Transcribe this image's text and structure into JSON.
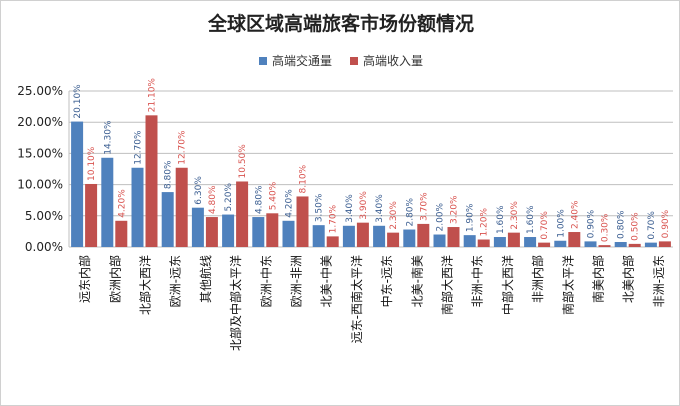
{
  "chart_data": {
    "type": "bar",
    "title": "全球区域高端旅客市场份额情况",
    "xlabel": "",
    "ylabel": "",
    "ylim": [
      0,
      25
    ],
    "yticks": [
      "0.00%",
      "5.00%",
      "10.00%",
      "15.00%",
      "20.00%",
      "25.00%"
    ],
    "grid": true,
    "legend_position": "top",
    "categories": [
      "远东内部",
      "欧洲内部",
      "北部大西洋",
      "欧洲-远东",
      "其他航线",
      "北部及中部太平洋",
      "欧洲-中东",
      "欧洲-非洲",
      "北美-中美",
      "远东-西南太平洋",
      "中东-远东",
      "北美-南美",
      "南部大西洋",
      "非洲-中东",
      "中部大西洋",
      "非洲内部",
      "南部太平洋",
      "南美内部",
      "北美内部",
      "非洲-远东"
    ],
    "series": [
      {
        "name": "高端交通量",
        "color": "#4f81bd",
        "values": [
          20.1,
          14.3,
          12.7,
          8.8,
          6.3,
          5.2,
          4.8,
          4.2,
          3.5,
          3.4,
          3.4,
          2.8,
          2.0,
          1.9,
          1.6,
          1.6,
          1.0,
          0.9,
          0.8,
          0.7
        ]
      },
      {
        "name": "高端收入量",
        "color": "#c0504d",
        "values": [
          10.1,
          4.2,
          21.1,
          12.7,
          4.8,
          10.5,
          5.4,
          8.1,
          1.7,
          3.9,
          2.3,
          3.7,
          3.2,
          1.2,
          2.3,
          0.7,
          2.4,
          0.3,
          0.5,
          0.9
        ]
      }
    ]
  }
}
